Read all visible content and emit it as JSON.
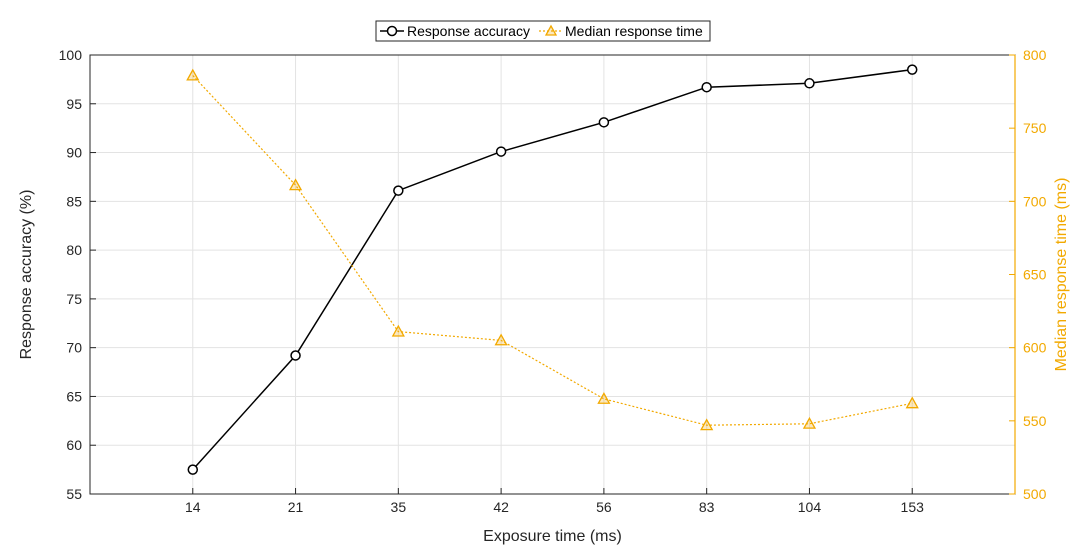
{
  "chart_data": {
    "type": "line",
    "categories": [
      "14",
      "21",
      "35",
      "42",
      "56",
      "83",
      "104",
      "153"
    ],
    "xlabel": "Exposure time (ms)",
    "ylabel": "Response accuracy (%)",
    "y2label": "Median response time (ms)",
    "ylim": [
      55,
      100
    ],
    "y2lim": [
      500,
      800
    ],
    "yticks": [
      55,
      60,
      65,
      70,
      75,
      80,
      85,
      90,
      95,
      100
    ],
    "y2ticks": [
      500,
      550,
      600,
      650,
      700,
      750,
      800
    ],
    "grid": true,
    "legend_position": "top-center",
    "series": [
      {
        "name": "Response accuracy",
        "axis": "left",
        "color": "#000000",
        "marker": "circle",
        "line_style": "solid",
        "values": [
          57.5,
          69.2,
          86.1,
          90.1,
          93.1,
          96.7,
          97.1,
          98.5
        ]
      },
      {
        "name": "Median response time",
        "axis": "right",
        "color": "#F2A900",
        "marker": "triangle",
        "line_style": "dotted",
        "values": [
          786,
          711,
          611,
          605,
          565,
          547,
          548,
          562
        ]
      }
    ]
  }
}
